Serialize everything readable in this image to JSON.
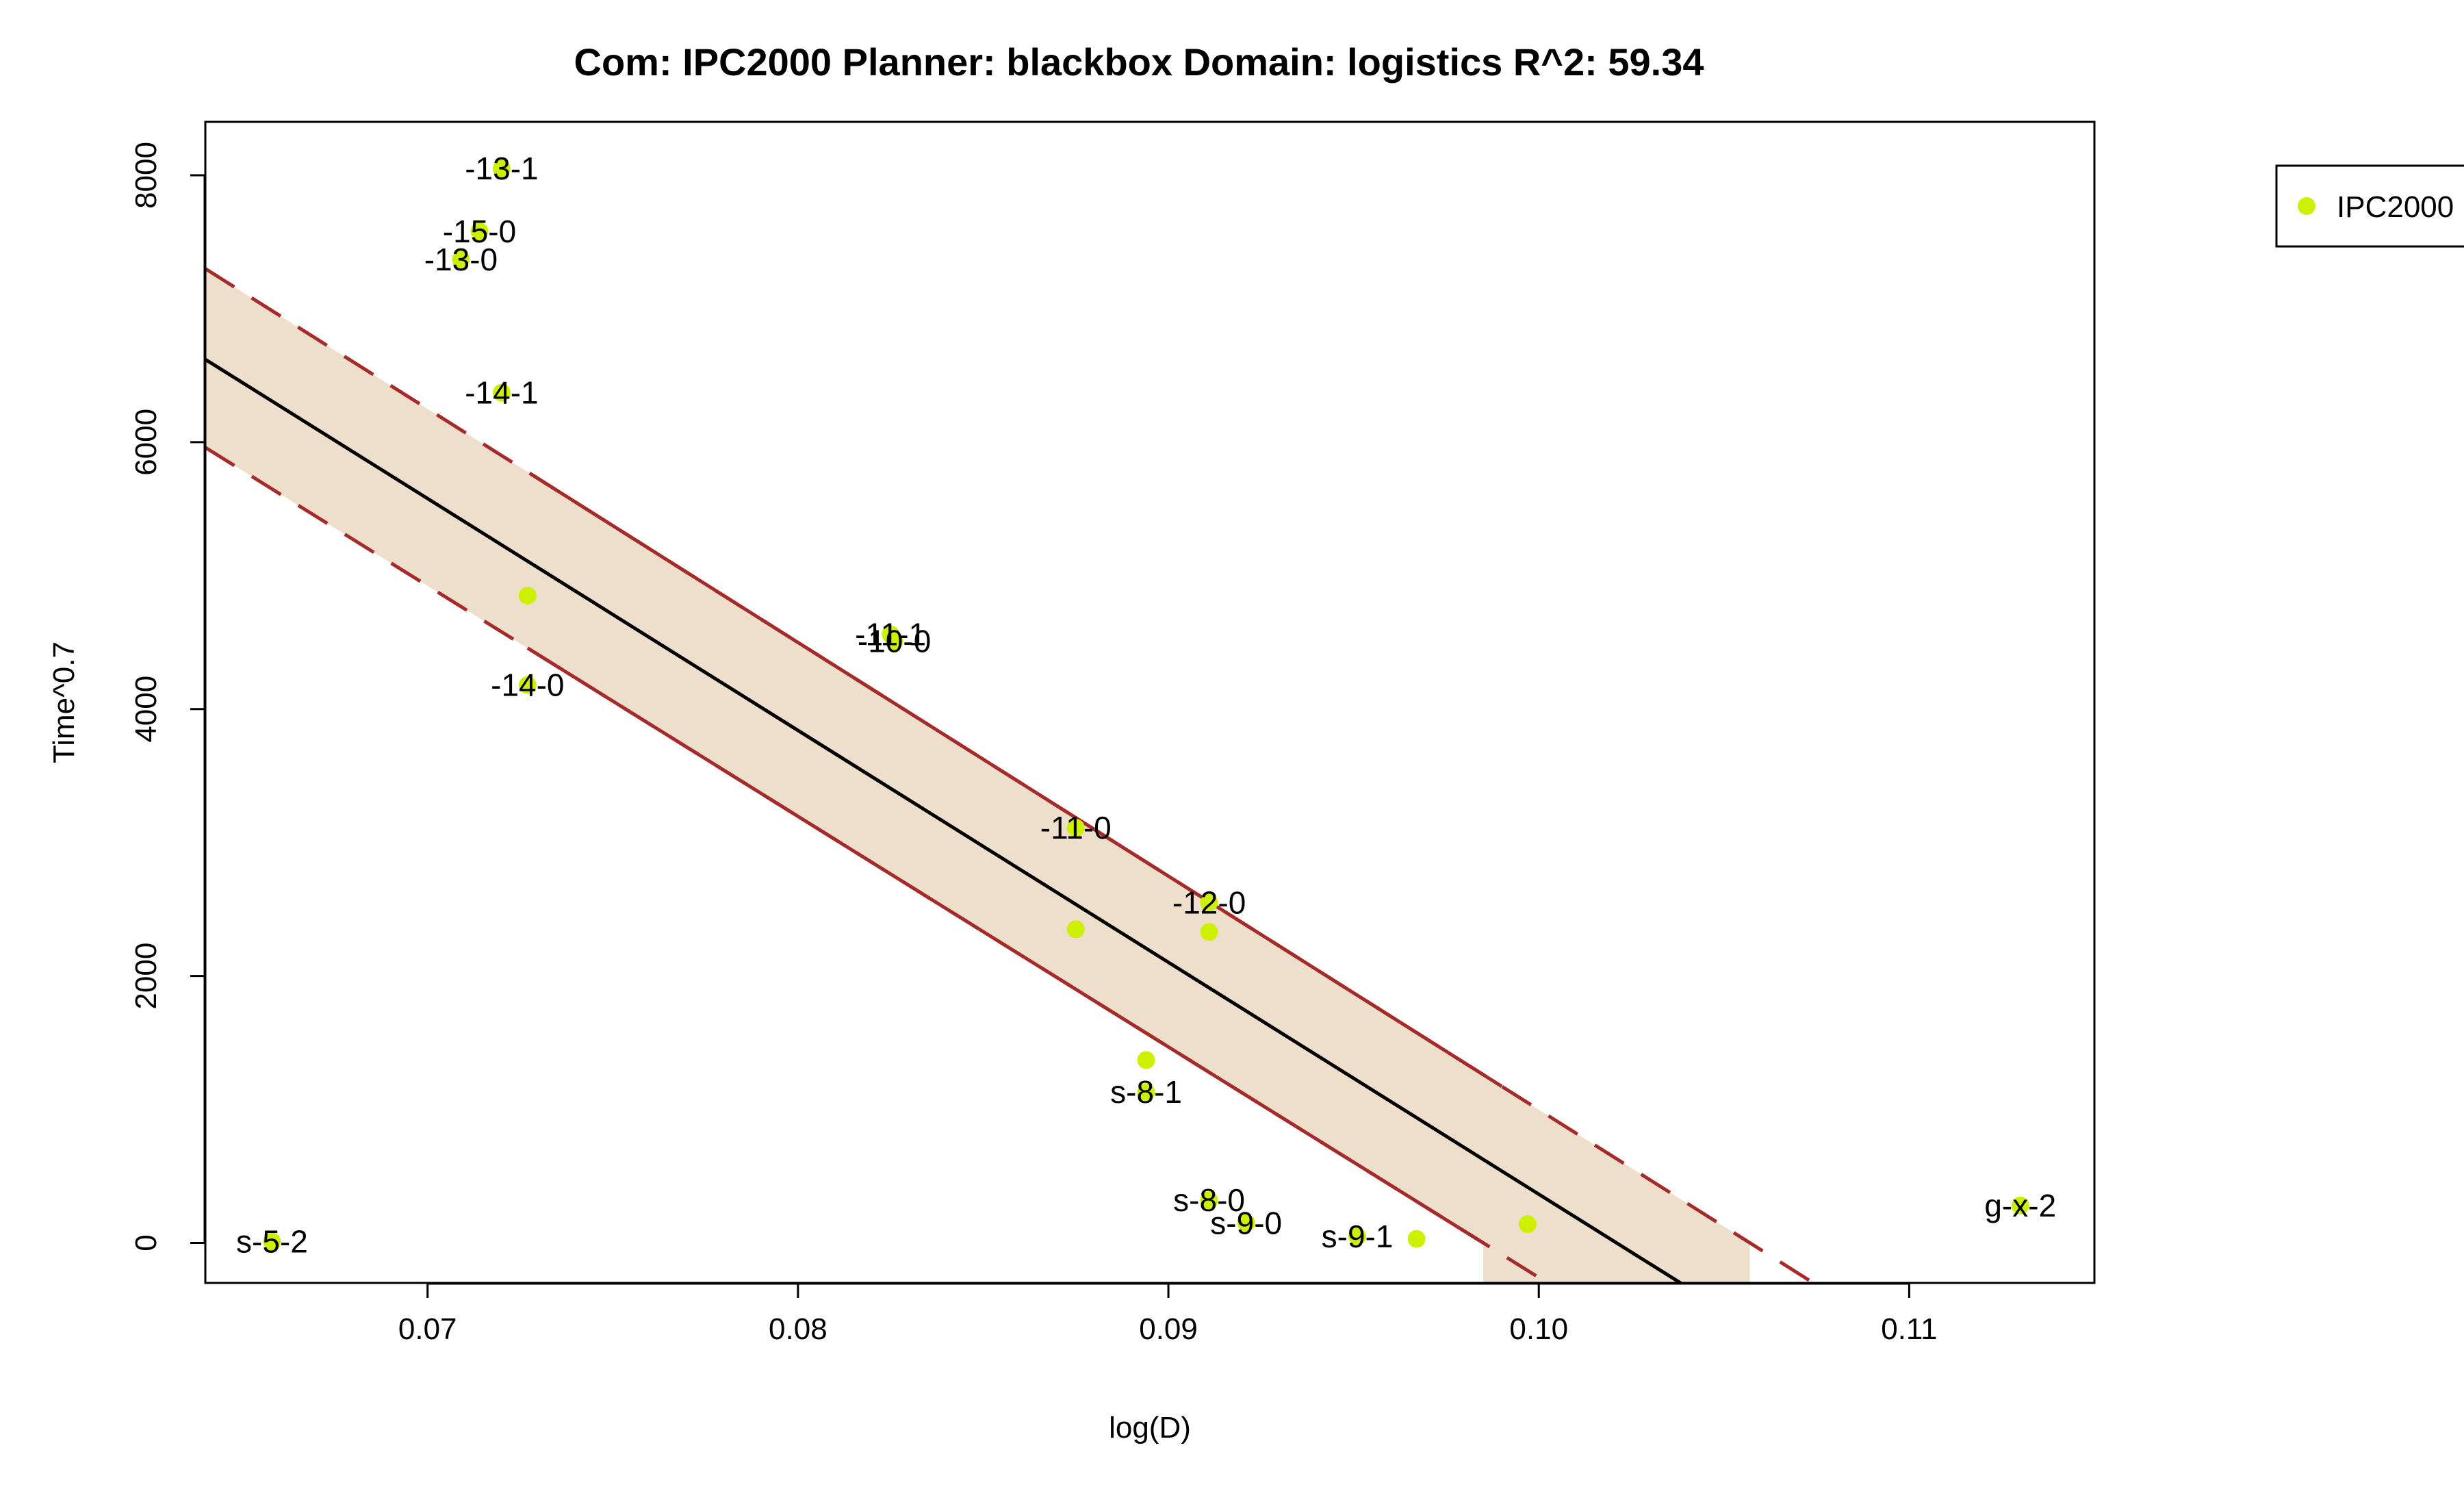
{
  "chart_data": {
    "type": "scatter",
    "title": "Com: IPC2000 Planner: blackbox Domain: logistics R^2: 59.34",
    "xlabel": "log(D)",
    "ylabel": "Time^0.7",
    "xlim": [
      0.064,
      0.115
    ],
    "ylim": [
      -300,
      8400
    ],
    "xticks": [
      0.07,
      0.08,
      0.09,
      0.1,
      0.11
    ],
    "xtick_labels": [
      "0.07",
      "0.08",
      "0.09",
      "0.10",
      "0.11"
    ],
    "yticks": [
      0,
      2000,
      4000,
      6000,
      8000
    ],
    "ytick_labels": [
      "0",
      "2000",
      "4000",
      "6000",
      "8000"
    ],
    "grid": false,
    "legend": {
      "position": "top-right",
      "entries": [
        "IPC2000"
      ]
    },
    "colors": {
      "points": "#ccf000",
      "band_fill": "#eedfcc",
      "band_edge": "#a52a2a",
      "fit_line": "#000000"
    },
    "fit": {
      "x": [
        0.064,
        0.1021
      ],
      "y": [
        6620,
        0
      ]
    },
    "band": {
      "upper": {
        "x": [
          0.064,
          0.1057
        ],
        "y": [
          7300,
          0
        ]
      },
      "lower": {
        "x": [
          0.064,
          0.0985
        ],
        "y": [
          5960,
          0
        ]
      }
    },
    "series": [
      {
        "name": "IPC2000",
        "points": [
          {
            "x": 0.072,
            "y": 8050,
            "label": "-13-1"
          },
          {
            "x": 0.0714,
            "y": 7580,
            "label": "-15-0"
          },
          {
            "x": 0.0709,
            "y": 7370,
            "label": "-13-0"
          },
          {
            "x": 0.072,
            "y": 6370,
            "label": "-14-1"
          },
          {
            "x": 0.0727,
            "y": 4850,
            "label": ""
          },
          {
            "x": 0.0727,
            "y": 4180,
            "label": "-14-0"
          },
          {
            "x": 0.0825,
            "y": 4560,
            "label": "-11-1"
          },
          {
            "x": 0.0826,
            "y": 4510,
            "label": "-10-0"
          },
          {
            "x": 0.0875,
            "y": 3110,
            "label": "-11-0"
          },
          {
            "x": 0.0875,
            "y": 2350,
            "label": ""
          },
          {
            "x": 0.0911,
            "y": 2550,
            "label": "-12-0"
          },
          {
            "x": 0.0911,
            "y": 2330,
            "label": ""
          },
          {
            "x": 0.0894,
            "y": 1370,
            "label": ""
          },
          {
            "x": 0.0894,
            "y": 1130,
            "label": "s-8-1"
          },
          {
            "x": 0.0911,
            "y": 320,
            "label": "s-8-0"
          },
          {
            "x": 0.0921,
            "y": 150,
            "label": "s-9-0"
          },
          {
            "x": 0.0967,
            "y": 30,
            "label": ""
          },
          {
            "x": 0.0951,
            "y": 50,
            "label": "s-9-1"
          },
          {
            "x": 0.0997,
            "y": 140,
            "label": ""
          },
          {
            "x": 0.0658,
            "y": 10,
            "label": "s-5-2"
          },
          {
            "x": 0.113,
            "y": 280,
            "label": "g-x-2"
          }
        ]
      }
    ]
  }
}
